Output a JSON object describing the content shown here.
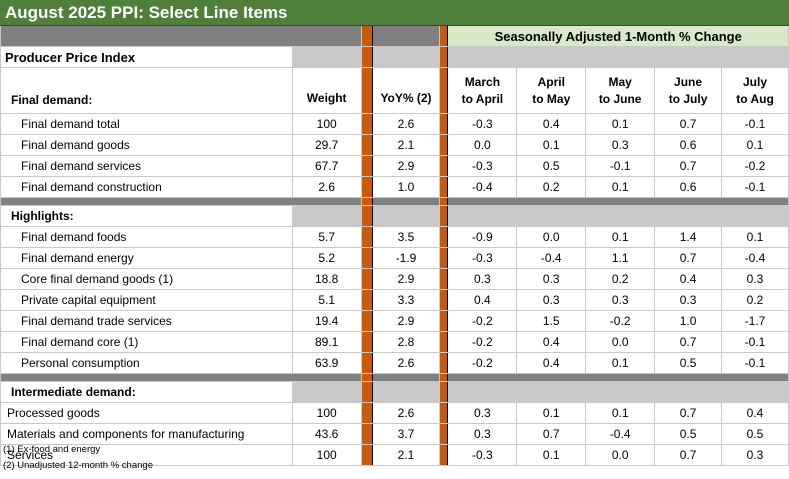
{
  "title": "August 2025 PPI: Select Line Items",
  "top_header": "Seasonally Adjusted 1-Month % Change",
  "ppi_label": "Producer Price Index",
  "section_final": "Final demand:",
  "col_weight": "Weight",
  "col_yoy": "YoY% (2)",
  "months": [
    {
      "l1": "March",
      "l2": "to April"
    },
    {
      "l1": "April",
      "l2": "to May"
    },
    {
      "l1": "May",
      "l2": "to June"
    },
    {
      "l1": "June",
      "l2": "to July"
    },
    {
      "l1": "July",
      "l2": "to Aug"
    }
  ],
  "final_rows": [
    {
      "name": "Final demand total",
      "weight": "100",
      "yoy": "2.6",
      "m": [
        "-0.3",
        "0.4",
        "0.1",
        "0.7",
        "-0.1"
      ]
    },
    {
      "name": "Final demand goods",
      "weight": "29.7",
      "yoy": "2.1",
      "m": [
        "0.0",
        "0.1",
        "0.3",
        "0.6",
        "0.1"
      ]
    },
    {
      "name": "Final demand services",
      "weight": "67.7",
      "yoy": "2.9",
      "m": [
        "-0.3",
        "0.5",
        "-0.1",
        "0.7",
        "-0.2"
      ]
    },
    {
      "name": "Final demand construction",
      "weight": "2.6",
      "yoy": "1.0",
      "m": [
        "-0.4",
        "0.2",
        "0.1",
        "0.6",
        "-0.1"
      ]
    }
  ],
  "section_highlights": "Highlights:",
  "highlight_rows": [
    {
      "name": "Final demand foods",
      "weight": "5.7",
      "yoy": "3.5",
      "m": [
        "-0.9",
        "0.0",
        "0.1",
        "1.4",
        "0.1"
      ]
    },
    {
      "name": "Final demand energy",
      "weight": "5.2",
      "yoy": "-1.9",
      "m": [
        "-0.3",
        "-0.4",
        "1.1",
        "0.7",
        "-0.4"
      ]
    },
    {
      "name": "Core final demand goods (1)",
      "weight": "18.8",
      "yoy": "2.9",
      "m": [
        "0.3",
        "0.3",
        "0.2",
        "0.4",
        "0.3"
      ]
    },
    {
      "name": "Private capital equipment",
      "weight": "5.1",
      "yoy": "3.3",
      "m": [
        "0.4",
        "0.3",
        "0.3",
        "0.3",
        "0.2"
      ]
    },
    {
      "name": "Final demand trade services",
      "weight": "19.4",
      "yoy": "2.9",
      "m": [
        "-0.2",
        "1.5",
        "-0.2",
        "1.0",
        "-1.7"
      ]
    },
    {
      "name": "Final demand core (1)",
      "weight": "89.1",
      "yoy": "2.8",
      "m": [
        "-0.2",
        "0.4",
        "0.0",
        "0.7",
        "-0.1"
      ]
    },
    {
      "name": "Personal consumption",
      "weight": "63.9",
      "yoy": "2.6",
      "m": [
        "-0.2",
        "0.4",
        "0.1",
        "0.5",
        "-0.1"
      ]
    }
  ],
  "section_intermediate": "Intermediate demand:",
  "intermediate_rows": [
    {
      "name": "Processed goods",
      "weight": "100",
      "yoy": "2.6",
      "m": [
        "0.3",
        "0.1",
        "0.1",
        "0.7",
        "0.4"
      ]
    },
    {
      "name": "Materials and components for manufacturing",
      "weight": "43.6",
      "yoy": "3.7",
      "m": [
        "0.3",
        "0.7",
        "-0.4",
        "0.5",
        "0.5"
      ]
    },
    {
      "name": "Services",
      "weight": "100",
      "yoy": "2.1",
      "m": [
        "-0.3",
        "0.1",
        "0.0",
        "0.7",
        "0.3"
      ]
    }
  ],
  "notes": [
    "(1) Ex-food and energy",
    "(2) Unadjusted 12-month % change"
  ]
}
